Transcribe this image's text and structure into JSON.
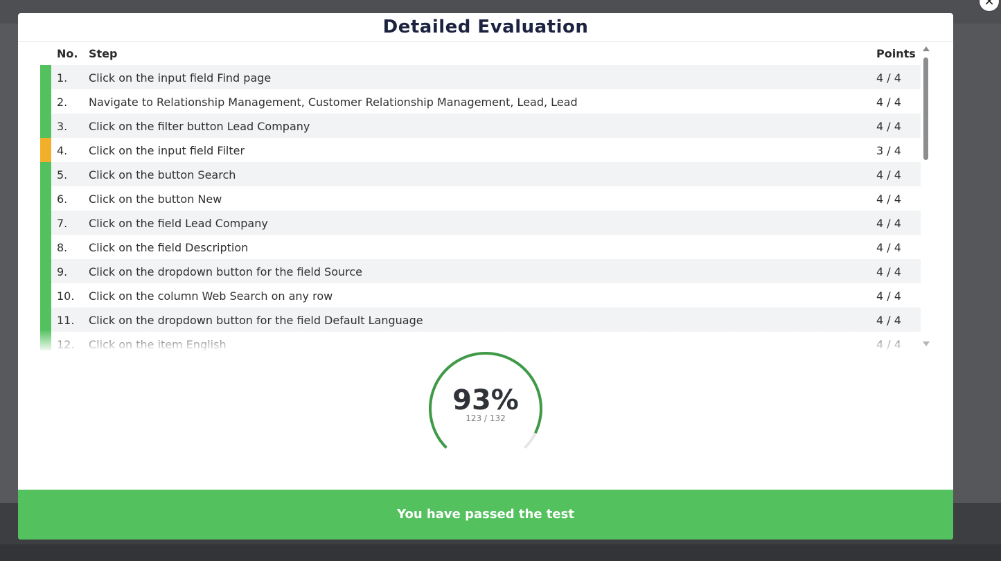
{
  "modal": {
    "title": "Detailed Evaluation",
    "close_glyph": "✕",
    "columns": {
      "no": "No.",
      "step": "Step",
      "points": "Points"
    },
    "rows": [
      {
        "no": "1.",
        "step": "Click on the input field Find page",
        "points": "4 / 4",
        "status": "pass"
      },
      {
        "no": "2.",
        "step": "Navigate to Relationship Management, Customer Relationship Management, Lead, Lead",
        "points": "4 / 4",
        "status": "pass"
      },
      {
        "no": "3.",
        "step": "Click on the filter button Lead Company",
        "points": "4 / 4",
        "status": "pass"
      },
      {
        "no": "4.",
        "step": "Click on the input field Filter",
        "points": "3 / 4",
        "status": "partial"
      },
      {
        "no": "5.",
        "step": "Click on the button Search",
        "points": "4 / 4",
        "status": "pass"
      },
      {
        "no": "6.",
        "step": "Click on the button New",
        "points": "4 / 4",
        "status": "pass"
      },
      {
        "no": "7.",
        "step": "Click on the field Lead Company",
        "points": "4 / 4",
        "status": "pass"
      },
      {
        "no": "8.",
        "step": "Click on the field Description",
        "points": "4 / 4",
        "status": "pass"
      },
      {
        "no": "9.",
        "step": "Click on the dropdown button for the field Source",
        "points": "4 / 4",
        "status": "pass"
      },
      {
        "no": "10.",
        "step": "Click on the column Web Search on any row",
        "points": "4 / 4",
        "status": "pass"
      },
      {
        "no": "11.",
        "step": "Click on the dropdown button for the field Default Language",
        "points": "4 / 4",
        "status": "pass"
      },
      {
        "no": "12.",
        "step": "Click on the item English",
        "points": "4 / 4",
        "status": "pass"
      }
    ],
    "score": {
      "percent_label": "93%",
      "detail": "123 / 132",
      "fraction": 0.93
    },
    "result_message": "You have passed the test"
  },
  "colors": {
    "pass": "#53c15e",
    "partial": "#f2b02a",
    "gauge": "#3f9a47",
    "gauge_track": "#e6e6e6",
    "title": "#1c2340"
  }
}
